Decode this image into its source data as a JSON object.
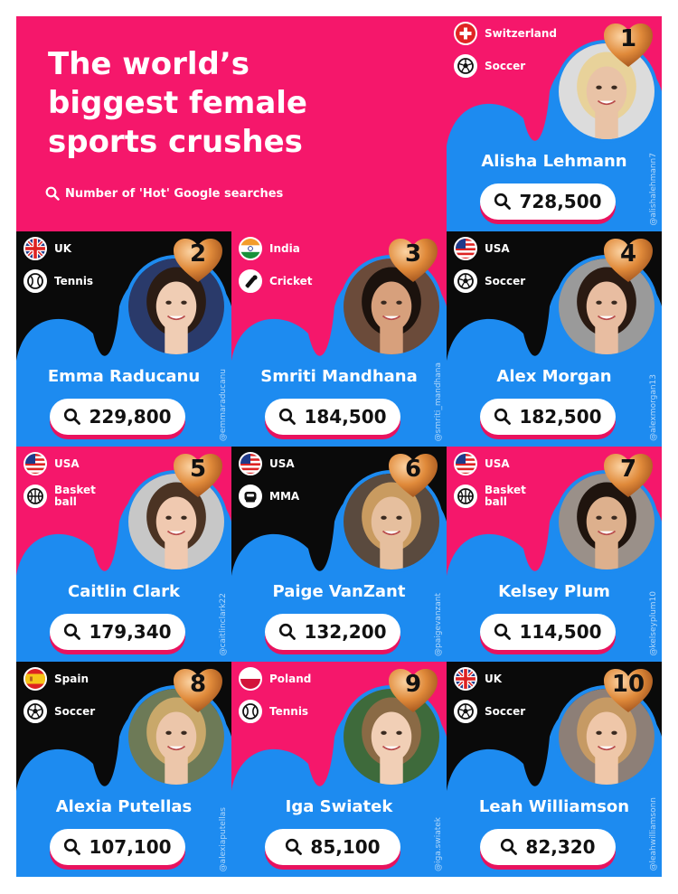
{
  "header": {
    "title_lines": [
      "The world’s",
      "biggest female",
      "sports crushes"
    ],
    "subtitle": "Number of 'Hot' Google searches",
    "search_icon": "search-icon"
  },
  "colors": {
    "pink": "#f5176b",
    "blue": "#1d8bf0",
    "black": "#0a0a0a",
    "heart": "#e08a3a"
  },
  "athletes": [
    {
      "rank": "1",
      "name": "Alisha Lehmann",
      "country": "Switzerland",
      "sport": "Soccer",
      "searches": "728,500",
      "handle": "@alishalehmann7",
      "flag_icon": "switzerland-flag-icon",
      "sport_icon": "soccer-ball-icon"
    },
    {
      "rank": "2",
      "name": "Emma Raducanu",
      "country": "UK",
      "sport": "Tennis",
      "searches": "229,800",
      "handle": "@emmaraducanu",
      "flag_icon": "uk-flag-icon",
      "sport_icon": "tennis-ball-icon"
    },
    {
      "rank": "3",
      "name": "Smriti Mandhana",
      "country": "India",
      "sport": "Cricket",
      "searches": "184,500",
      "handle": "@smriti_mandhana",
      "flag_icon": "india-flag-icon",
      "sport_icon": "cricket-icon"
    },
    {
      "rank": "4",
      "name": "Alex Morgan",
      "country": "USA",
      "sport": "Soccer",
      "searches": "182,500",
      "handle": "@alexmorgan13",
      "flag_icon": "usa-flag-icon",
      "sport_icon": "soccer-ball-icon"
    },
    {
      "rank": "5",
      "name": "Caitlin Clark",
      "country": "USA",
      "sport": "Basket ball",
      "searches": "179,340",
      "handle": "@caitlinclark22",
      "flag_icon": "usa-flag-icon",
      "sport_icon": "basketball-icon"
    },
    {
      "rank": "6",
      "name": "Paige VanZant",
      "country": "USA",
      "sport": "MMA",
      "searches": "132,200",
      "handle": "@paigevanzant",
      "flag_icon": "usa-flag-icon",
      "sport_icon": "mma-icon"
    },
    {
      "rank": "7",
      "name": "Kelsey Plum",
      "country": "USA",
      "sport": "Basket ball",
      "searches": "114,500",
      "handle": "@kelseyplum10",
      "flag_icon": "usa-flag-icon",
      "sport_icon": "basketball-icon"
    },
    {
      "rank": "8",
      "name": "Alexia Putellas",
      "country": "Spain",
      "sport": "Soccer",
      "searches": "107,100",
      "handle": "@alexiaputellas",
      "flag_icon": "spain-flag-icon",
      "sport_icon": "soccer-ball-icon"
    },
    {
      "rank": "9",
      "name": "Iga Swiatek",
      "country": "Poland",
      "sport": "Tennis",
      "searches": "85,100",
      "handle": "@iga.swiatek",
      "flag_icon": "poland-flag-icon",
      "sport_icon": "tennis-ball-icon"
    },
    {
      "rank": "10",
      "name": "Leah Williamson",
      "country": "UK",
      "sport": "Soccer",
      "searches": "82,320",
      "handle": "@leahwilliamsonn",
      "flag_icon": "uk-flag-icon",
      "sport_icon": "soccer-ball-icon"
    }
  ]
}
